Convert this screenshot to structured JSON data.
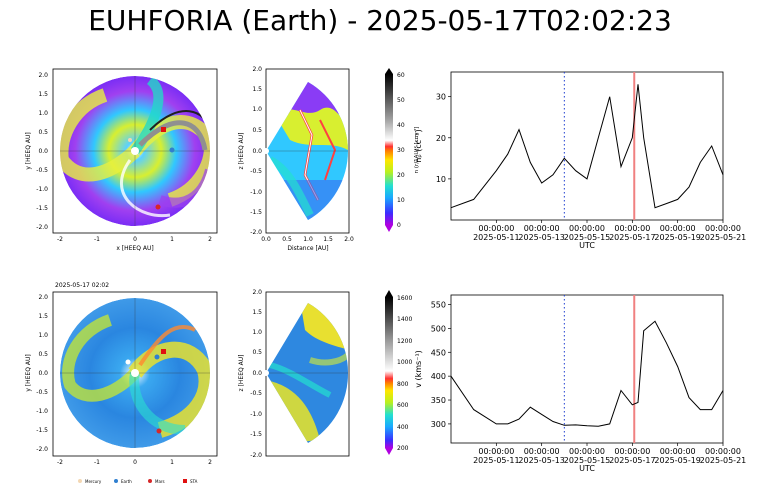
{
  "title": "EUHFORIA (Earth) -  2025-05-17T02:02:23",
  "timestamp_label": "2025-05-17 02:02",
  "legend": [
    "Mercury",
    "Earth",
    "Mars",
    "STA"
  ],
  "colors": {
    "mercury": "#f3d7b3",
    "earth": "#2f7fd0",
    "mars": "#d62728",
    "sta": "#e01010",
    "now_line": "#f08080",
    "mark_line": "#1f3fd0"
  },
  "equatorial_panel": {
    "xlabel": "x [HEEQ AU]",
    "ylabel": "y [HEEQ AU]",
    "ticks": [
      "-2",
      "-1",
      "0",
      "1",
      "2"
    ],
    "yticks": [
      "2.0",
      "1.5",
      "1.0",
      "0.5",
      "0.0",
      "-0.5",
      "-1.0",
      "-1.5",
      "-2.0"
    ]
  },
  "meridional_panel": {
    "xlabel": "Distance [AU]",
    "ylabel": "z [HEEQ AU]",
    "xticks": [
      "0.0",
      "0.5",
      "1.0",
      "1.5",
      "2.0"
    ],
    "yticks": [
      "2.0",
      "1.5",
      "1.0",
      "0.5",
      "0.0",
      "-0.5",
      "-1.0",
      "-1.5",
      "-2.0"
    ]
  },
  "colorbar_density": {
    "label": "n (r/1AU)²  [cm⁻³]",
    "ticks": [
      "60",
      "50",
      "40",
      "30",
      "20",
      "10",
      "0"
    ]
  },
  "colorbar_speed": {
    "label": "v [km/s]",
    "ticks": [
      "1600",
      "1400",
      "1200",
      "1000",
      "800",
      "600",
      "400",
      "200"
    ]
  },
  "chart_data": [
    {
      "type": "line",
      "xlabel": "UTC",
      "ylabel": "nₚ (cc⁻³)",
      "xlim": [
        "2025-05-09T00:00",
        "2025-05-21T00:00"
      ],
      "ylim": [
        0,
        36
      ],
      "xticks": [
        "2025-05-11",
        "2025-05-13",
        "2025-05-15",
        "2025-05-17",
        "2025-05-19",
        "2025-05-21"
      ],
      "xtick_time": "00:00:00",
      "yticks": [
        10,
        20,
        30
      ],
      "x": [
        "2025-05-09T00:00",
        "2025-05-10T00:00",
        "2025-05-11T00:00",
        "2025-05-11T12:00",
        "2025-05-12T00:00",
        "2025-05-12T12:00",
        "2025-05-13T00:00",
        "2025-05-13T12:00",
        "2025-05-14T00:00",
        "2025-05-14T12:00",
        "2025-05-15T00:00",
        "2025-05-15T12:00",
        "2025-05-16T00:00",
        "2025-05-16T12:00",
        "2025-05-17T00:00",
        "2025-05-17T06:00",
        "2025-05-17T12:00",
        "2025-05-18T00:00",
        "2025-05-18T12:00",
        "2025-05-19T00:00",
        "2025-05-19T12:00",
        "2025-05-20T00:00",
        "2025-05-20T12:00",
        "2025-05-21T00:00"
      ],
      "values": [
        3,
        5,
        12,
        16,
        22,
        14,
        9,
        11,
        15,
        12,
        10,
        20,
        30,
        13,
        20,
        33,
        20,
        3,
        4,
        5,
        8,
        14,
        18,
        11
      ],
      "vline_dotted": "2025-05-14T00:00",
      "vline_now": "2025-05-17T02:02"
    },
    {
      "type": "line",
      "xlabel": "UTC",
      "ylabel": "v (kms⁻¹)",
      "xlim": [
        "2025-05-09T00:00",
        "2025-05-21T00:00"
      ],
      "ylim": [
        260,
        570
      ],
      "xticks": [
        "2025-05-11",
        "2025-05-13",
        "2025-05-15",
        "2025-05-17",
        "2025-05-19",
        "2025-05-21"
      ],
      "xtick_time": "00:00:00",
      "yticks": [
        300,
        350,
        400,
        450,
        500,
        550
      ],
      "x": [
        "2025-05-09T00:00",
        "2025-05-10T00:00",
        "2025-05-11T00:00",
        "2025-05-11T12:00",
        "2025-05-12T00:00",
        "2025-05-12T12:00",
        "2025-05-13T00:00",
        "2025-05-13T12:00",
        "2025-05-14T00:00",
        "2025-05-14T12:00",
        "2025-05-15T00:00",
        "2025-05-15T12:00",
        "2025-05-16T00:00",
        "2025-05-16T12:00",
        "2025-05-17T00:00",
        "2025-05-17T06:00",
        "2025-05-17T12:00",
        "2025-05-18T00:00",
        "2025-05-18T12:00",
        "2025-05-19T00:00",
        "2025-05-19T12:00",
        "2025-05-20T00:00",
        "2025-05-20T12:00",
        "2025-05-21T00:00"
      ],
      "values": [
        400,
        330,
        300,
        300,
        310,
        335,
        320,
        305,
        297,
        298,
        296,
        295,
        300,
        370,
        340,
        345,
        495,
        515,
        470,
        420,
        355,
        330,
        330,
        370
      ],
      "vline_dotted": "2025-05-14T00:00",
      "vline_now": "2025-05-17T02:02"
    }
  ]
}
